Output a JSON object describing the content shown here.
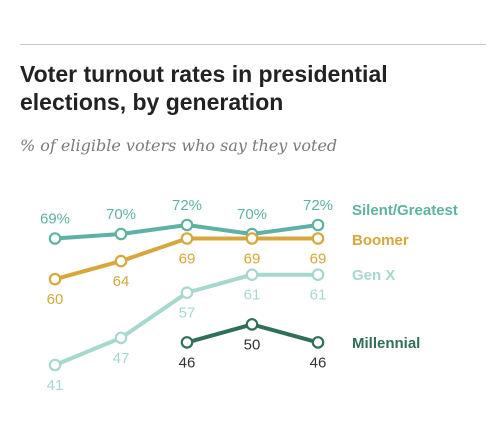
{
  "header": {
    "title": "Voter turnout rates in presidential elections, by generation",
    "subtitle": "% of eligible voters who say they voted"
  },
  "chart_data": {
    "type": "line",
    "x": [
      0,
      1,
      2,
      3,
      4
    ],
    "ylim": [
      38,
      74
    ],
    "grid": false,
    "series": [
      {
        "name": "Silent/Greatest",
        "color": "#5fb2a3",
        "values": [
          69,
          70,
          72,
          70,
          72
        ],
        "labels": [
          "69%",
          "70%",
          "72%",
          "70%",
          "72%"
        ],
        "label_pos": "above"
      },
      {
        "name": "Boomer",
        "color": "#d6a73a",
        "values": [
          60,
          64,
          69,
          69,
          69
        ],
        "labels": [
          "60",
          "64",
          "69",
          "69",
          "69"
        ],
        "label_pos": "below"
      },
      {
        "name": "Gen X",
        "color": "#a7d8ce",
        "values": [
          41,
          47,
          57,
          61,
          61
        ],
        "labels": [
          "41",
          "47",
          "57",
          "61",
          "61"
        ],
        "label_pos": "below"
      },
      {
        "name": "Millennial",
        "color": "#2f6f5b",
        "values": [
          null,
          null,
          46,
          50,
          46
        ],
        "labels": [
          null,
          null,
          "46",
          "50",
          "46"
        ],
        "label_pos": "below"
      }
    ]
  }
}
